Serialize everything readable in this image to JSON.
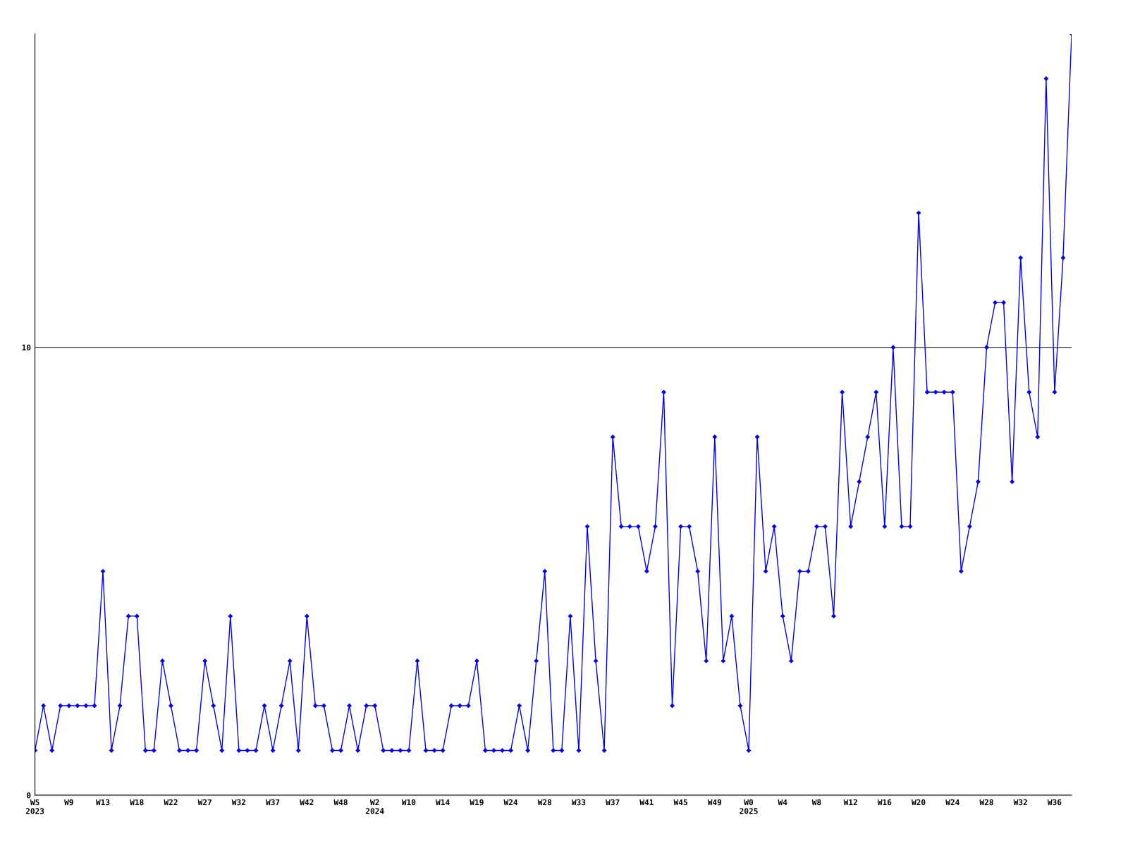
{
  "chart_data": {
    "type": "line",
    "categories": [
      "W5\n2023",
      null,
      null,
      null,
      "W9",
      null,
      null,
      null,
      "W13",
      null,
      null,
      null,
      "W18",
      null,
      null,
      null,
      "W22",
      null,
      null,
      null,
      "W27",
      null,
      null,
      null,
      "W32",
      null,
      null,
      null,
      "W37",
      null,
      null,
      null,
      "W42",
      null,
      null,
      null,
      "W48",
      null,
      null,
      null,
      "W2\n2024",
      null,
      null,
      null,
      "W10",
      null,
      null,
      null,
      "W14",
      null,
      null,
      null,
      "W19",
      null,
      null,
      null,
      "W24",
      null,
      null,
      null,
      "W28",
      null,
      null,
      null,
      "W33",
      null,
      null,
      null,
      "W37",
      null,
      null,
      null,
      "W41",
      null,
      null,
      null,
      "W45",
      null,
      null,
      null,
      "W49",
      null,
      null,
      null,
      "W0\n2025",
      null,
      null,
      null,
      "W4",
      null,
      null,
      null,
      "W8",
      null,
      null,
      null,
      "W12",
      null,
      null,
      null,
      "W16",
      null,
      null,
      null,
      "W20",
      null,
      null,
      null,
      "W24",
      null,
      null,
      null,
      "W28",
      null,
      null,
      null,
      "W32",
      null,
      null,
      null,
      "W36",
      null,
      null
    ],
    "series": [
      {
        "color": "#0000ff",
        "values": [
          1,
          2,
          1,
          2,
          2,
          2,
          2,
          2,
          5,
          1,
          2,
          4,
          4,
          1,
          1,
          3,
          2,
          1,
          1,
          1,
          3,
          2,
          1,
          4,
          1,
          1,
          1,
          2,
          1,
          2,
          3,
          1,
          4,
          2,
          2,
          1,
          1,
          2,
          1,
          2,
          2,
          1,
          1,
          1,
          1,
          3,
          1,
          1,
          1,
          2,
          2,
          2,
          3,
          1,
          1,
          1,
          1,
          2,
          1,
          3,
          5,
          1,
          1,
          4,
          1,
          6,
          3,
          1,
          8,
          6,
          6,
          6,
          5,
          6,
          9,
          2,
          6,
          6,
          5,
          3,
          8,
          3,
          4,
          2,
          1,
          8,
          5,
          6,
          4,
          3,
          5,
          5,
          6,
          6,
          4,
          9,
          6,
          7,
          8,
          9,
          6,
          10,
          6,
          6,
          13,
          9,
          9,
          9,
          9,
          5,
          6,
          7,
          10,
          11,
          11,
          7,
          12,
          9,
          8,
          16,
          9,
          12,
          17
        ]
      }
    ],
    "ylim": [
      0,
      17
    ],
    "yticks": [
      0,
      10
    ],
    "grid": "y",
    "marker": "diamond",
    "line_style": "solid",
    "legend": false
  }
}
